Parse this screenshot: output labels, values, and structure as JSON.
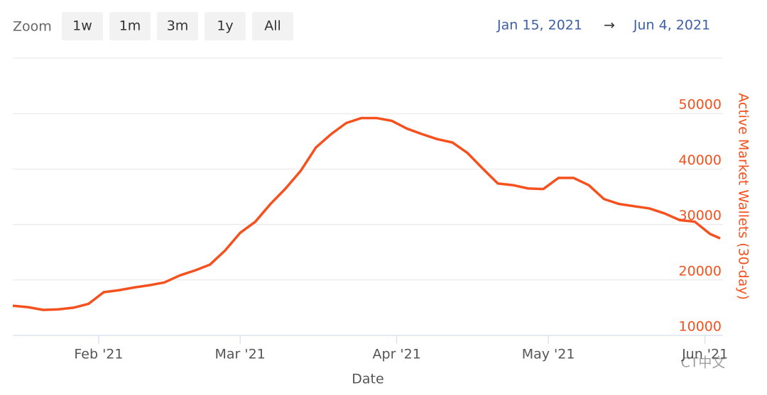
{
  "zoom": {
    "label": "Zoom",
    "buttons": [
      "1w",
      "1m",
      "3m",
      "1y",
      "All"
    ]
  },
  "range": {
    "from": "Jan 15, 2021",
    "arrow": "→",
    "to": "Jun 4, 2021"
  },
  "watermark": "CT中文",
  "chart_data": {
    "type": "line",
    "x_label": "Date",
    "y_label": "Active Market Wallets (30-day)",
    "x": [
      "2021-01-15",
      "2021-01-18",
      "2021-01-21",
      "2021-01-24",
      "2021-01-27",
      "2021-01-30",
      "2021-02-02",
      "2021-02-05",
      "2021-02-08",
      "2021-02-11",
      "2021-02-14",
      "2021-02-17",
      "2021-02-20",
      "2021-02-23",
      "2021-02-26",
      "2021-03-01",
      "2021-03-04",
      "2021-03-07",
      "2021-03-10",
      "2021-03-13",
      "2021-03-16",
      "2021-03-19",
      "2021-03-22",
      "2021-03-25",
      "2021-03-28",
      "2021-03-31",
      "2021-04-03",
      "2021-04-06",
      "2021-04-09",
      "2021-04-12",
      "2021-04-15",
      "2021-04-18",
      "2021-04-21",
      "2021-04-24",
      "2021-04-27",
      "2021-04-30",
      "2021-05-03",
      "2021-05-06",
      "2021-05-09",
      "2021-05-12",
      "2021-05-15",
      "2021-05-18",
      "2021-05-21",
      "2021-05-24",
      "2021-05-27",
      "2021-05-30",
      "2021-06-02",
      "2021-06-04"
    ],
    "values": [
      15350,
      15100,
      14600,
      14700,
      15000,
      15700,
      17800,
      18150,
      18650,
      19050,
      19550,
      20800,
      21700,
      22750,
      25300,
      28500,
      30500,
      33700,
      36500,
      39700,
      43900,
      46300,
      48300,
      49200,
      49200,
      48700,
      47300,
      46300,
      45400,
      44800,
      42900,
      40100,
      37400,
      37100,
      36500,
      36400,
      38400,
      38400,
      37100,
      34600,
      33700,
      33300,
      32900,
      32000,
      30800,
      30500,
      28300,
      27500
    ],
    "color": "#f4511e",
    "xlim": [
      "2021-01-15",
      "2021-06-04"
    ],
    "xticks": [
      {
        "value": "2021-02-01",
        "label": "Feb '21"
      },
      {
        "value": "2021-03-01",
        "label": "Mar '21"
      },
      {
        "value": "2021-04-01",
        "label": "Apr '21"
      },
      {
        "value": "2021-05-01",
        "label": "May '21"
      },
      {
        "value": "2021-06-01",
        "label": "Jun '21"
      }
    ],
    "ylim": [
      10000,
      60000
    ],
    "yticks": [
      10000,
      20000,
      30000,
      40000,
      50000
    ],
    "grid": true
  }
}
